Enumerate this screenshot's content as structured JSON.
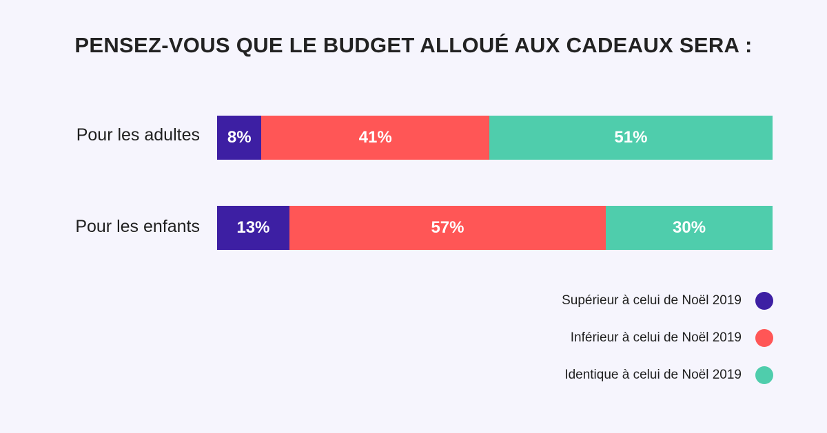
{
  "title": "PENSEZ-VOUS QUE LE BUDGET ALLOUÉ AUX CADEAUX SERA :",
  "chart_data": {
    "type": "bar",
    "orientation": "horizontal",
    "stacked": true,
    "title": "PENSEZ-VOUS QUE LE BUDGET ALLOUÉ AUX CADEAUX SERA :",
    "categories": [
      "Pour les adultes",
      "Pour les enfants"
    ],
    "series": [
      {
        "name": "Supérieur à celui de Noël 2019",
        "color": "#3d1fa3",
        "values": [
          8,
          13
        ],
        "labels": [
          "8%",
          "13%"
        ]
      },
      {
        "name": "Inférieur à celui de Noël 2019",
        "color": "#ff5656",
        "values": [
          41,
          57
        ],
        "labels": [
          "41%",
          "57%"
        ]
      },
      {
        "name": "Identique à celui de Noël 2019",
        "color": "#4fcdac",
        "values": [
          51,
          30
        ],
        "labels": [
          "51%",
          "30%"
        ]
      }
    ],
    "unit": "%",
    "legend_position": "bottom-right"
  }
}
